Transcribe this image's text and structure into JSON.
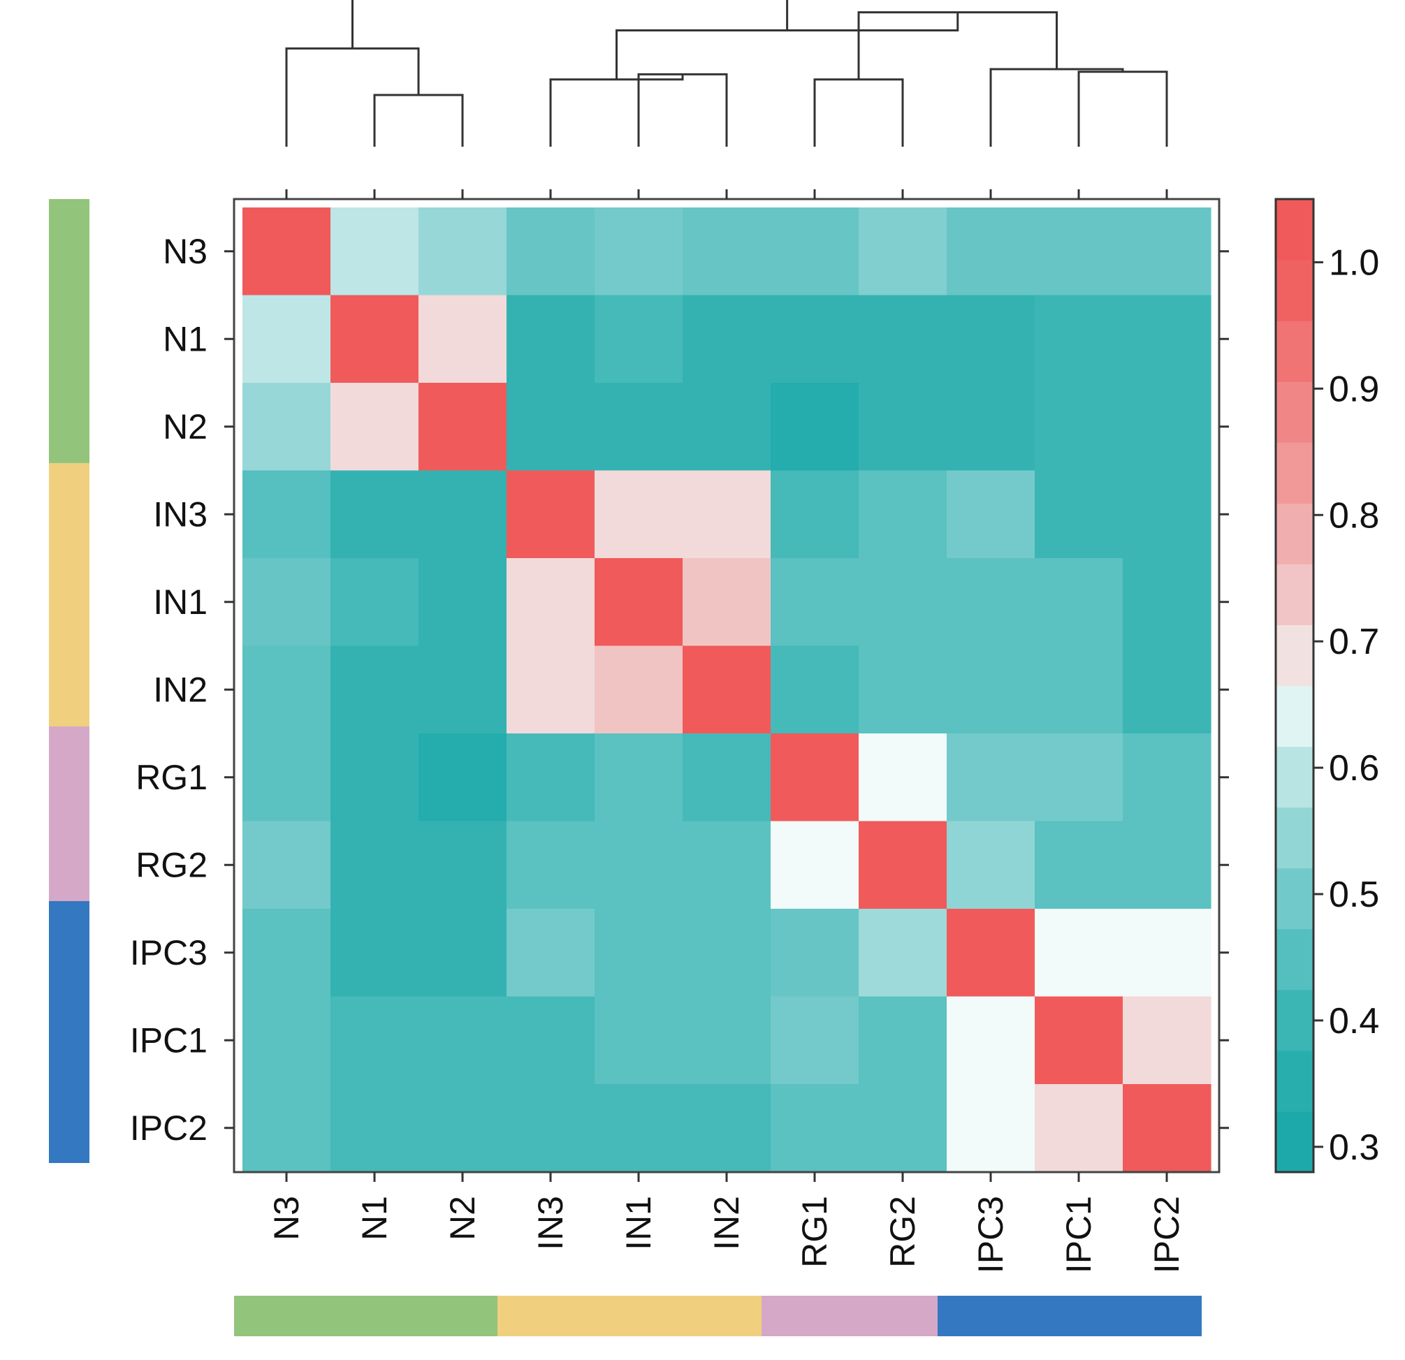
{
  "chart_data": {
    "type": "heatmap",
    "title": "",
    "xlabel": "",
    "ylabel": "",
    "labels": [
      "N3",
      "N1",
      "N2",
      "IN3",
      "IN1",
      "IN2",
      "RG1",
      "RG2",
      "IPC3",
      "IPC1",
      "IPC2"
    ],
    "x_labels": [
      "N3",
      "N1",
      "N2",
      "IN3",
      "IN1",
      "IN2",
      "RG1",
      "RG2",
      "IPC3",
      "IPC1",
      "IPC2"
    ],
    "y_labels": [
      "N3",
      "N1",
      "N2",
      "IN3",
      "IN1",
      "IN2",
      "RG1",
      "RG2",
      "IPC3",
      "IPC1",
      "IPC2"
    ],
    "values": [
      [
        1.0,
        0.6,
        0.55,
        0.48,
        0.5,
        0.48,
        0.48,
        0.52,
        0.48,
        0.48,
        0.48
      ],
      [
        0.6,
        1.0,
        0.7,
        0.38,
        0.42,
        0.38,
        0.38,
        0.38,
        0.38,
        0.4,
        0.4
      ],
      [
        0.55,
        0.7,
        1.0,
        0.38,
        0.38,
        0.38,
        0.34,
        0.38,
        0.38,
        0.4,
        0.4
      ],
      [
        0.45,
        0.38,
        0.38,
        1.0,
        0.7,
        0.7,
        0.42,
        0.46,
        0.5,
        0.4,
        0.4
      ],
      [
        0.48,
        0.42,
        0.38,
        0.7,
        1.0,
        0.74,
        0.46,
        0.46,
        0.46,
        0.46,
        0.4
      ],
      [
        0.46,
        0.38,
        0.38,
        0.7,
        0.74,
        1.0,
        0.42,
        0.46,
        0.46,
        0.46,
        0.4
      ],
      [
        0.46,
        0.38,
        0.34,
        0.42,
        0.46,
        0.42,
        1.0,
        0.66,
        0.5,
        0.5,
        0.46
      ],
      [
        0.5,
        0.38,
        0.38,
        0.46,
        0.46,
        0.46,
        0.66,
        1.0,
        0.54,
        0.46,
        0.46
      ],
      [
        0.46,
        0.38,
        0.38,
        0.5,
        0.46,
        0.46,
        0.48,
        0.56,
        1.0,
        0.66,
        0.66
      ],
      [
        0.46,
        0.42,
        0.42,
        0.42,
        0.46,
        0.46,
        0.5,
        0.46,
        0.66,
        1.0,
        0.7
      ],
      [
        0.46,
        0.42,
        0.42,
        0.42,
        0.42,
        0.42,
        0.46,
        0.46,
        0.66,
        0.7,
        1.0
      ]
    ],
    "color_scale": {
      "min": 0.28,
      "max": 1.05,
      "ticks": [
        "0.3",
        "0.4",
        "0.5",
        "0.6",
        "0.7",
        "0.8",
        "0.9",
        "1.0"
      ],
      "tick_values": [
        0.3,
        0.4,
        0.5,
        0.6,
        0.7,
        0.8,
        0.9,
        1.0
      ],
      "low_color": "#1aa8a8",
      "mid_color": "#f2fafa",
      "mid_value": 0.66,
      "high_color": "#f05a5a"
    },
    "groups": [
      {
        "members": [
          "N3",
          "N1",
          "N2"
        ],
        "color": "#92c47c"
      },
      {
        "members": [
          "IN3",
          "IN1",
          "IN2"
        ],
        "color": "#f0cf7e"
      },
      {
        "members": [
          "RG1",
          "RG2"
        ],
        "color": "#d5a8c7"
      },
      {
        "members": [
          "IPC3",
          "IPC1",
          "IPC2"
        ],
        "color": "#3478c1"
      }
    ],
    "dendrogram": {
      "merges": [
        [
          1,
          2,
          0.8
        ],
        [
          4,
          5,
          0.72
        ],
        [
          6,
          7,
          0.74
        ],
        [
          9,
          10,
          0.71
        ],
        [
          0,
          11,
          0.62
        ],
        [
          3,
          12,
          0.74
        ],
        [
          8,
          14,
          0.7
        ],
        [
          13,
          17,
          0.48
        ],
        [
          16,
          18,
          0.55
        ],
        [
          15,
          19,
          0.4
        ]
      ]
    },
    "legend_position": "right",
    "grid": false
  }
}
